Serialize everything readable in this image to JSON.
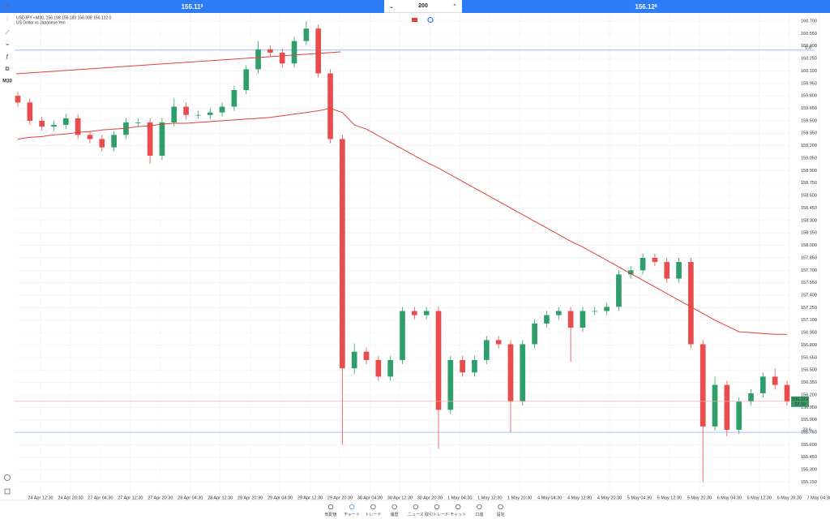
{
  "header": {
    "sell_price": "156.11",
    "sell_pip": "9",
    "lot": "200",
    "buy_price": "156.12",
    "buy_pip": "8"
  },
  "legend": {
    "symbol": "USDJPY • M30, 156.198 156.183 156.088 156.122 0",
    "description": "US Dollar vs Japanese Yen"
  },
  "toolbar": {
    "timeframe": "M30"
  },
  "chart_data": {
    "type": "candlestick",
    "up_color": "#2e9e6b",
    "down_color": "#e84c4c",
    "grid": true,
    "ylim": [
      154.95,
      160.827
    ],
    "yticks": [
      {
        "value": 160.7,
        "label": "160.700"
      },
      {
        "value": 160.55,
        "label": "160.550"
      },
      {
        "value": 160.4,
        "label": "160.400"
      },
      {
        "value": 160.25,
        "label": "160.250"
      },
      {
        "value": 160.1,
        "label": "160.100"
      },
      {
        "value": 159.95,
        "label": "159.950"
      },
      {
        "value": 159.8,
        "label": "159.800"
      },
      {
        "value": 159.65,
        "label": "159.650"
      },
      {
        "value": 159.5,
        "label": "159.500"
      },
      {
        "value": 159.35,
        "label": "159.350"
      },
      {
        "value": 159.2,
        "label": "159.200"
      },
      {
        "value": 159.05,
        "label": "159.050"
      },
      {
        "value": 158.9,
        "label": "158.900"
      },
      {
        "value": 158.75,
        "label": "158.750"
      },
      {
        "value": 158.6,
        "label": "158.600"
      },
      {
        "value": 158.45,
        "label": "158.450"
      },
      {
        "value": 158.3,
        "label": "158.300"
      },
      {
        "value": 158.15,
        "label": "158.150"
      },
      {
        "value": 158,
        "label": "158.000"
      },
      {
        "value": 157.85,
        "label": "157.850"
      },
      {
        "value": 157.7,
        "label": "157.700"
      },
      {
        "value": 157.55,
        "label": "157.550"
      },
      {
        "value": 157.4,
        "label": "157.400"
      },
      {
        "value": 157.25,
        "label": "157.250"
      },
      {
        "value": 157.1,
        "label": "157.100"
      },
      {
        "value": 156.95,
        "label": "156.950"
      },
      {
        "value": 156.8,
        "label": "156.800"
      },
      {
        "value": 156.65,
        "label": "156.650"
      },
      {
        "value": 156.5,
        "label": "156.500"
      },
      {
        "value": 156.35,
        "label": "156.350"
      },
      {
        "value": 156.2,
        "label": "156.200"
      },
      {
        "value": 156.05,
        "label": "156.050"
      },
      {
        "value": 155.9,
        "label": "155.900"
      },
      {
        "value": 155.75,
        "label": "155.750"
      },
      {
        "value": 155.6,
        "label": "155.600"
      },
      {
        "value": 155.45,
        "label": "155.450"
      },
      {
        "value": 155.3,
        "label": "155.300"
      },
      {
        "value": 155.15,
        "label": "155.150"
      }
    ],
    "x_labels": [
      "24 Apr 12:30",
      "24 Apr 20:30",
      "27 Apr 04:30",
      "27 Apr 12:30",
      "27 Apr 20:30",
      "28 Apr 04:30",
      "28 Apr 12:30",
      "28 Apr 20:30",
      "29 Apr 04:30",
      "29 Apr 12:30",
      "29 Apr 20:30",
      "30 Apr 04:30",
      "30 Apr 12:30",
      "30 Apr 20:30",
      "1 May 04:30",
      "1 May 12:30",
      "1 May 20:30",
      "4 May 04:30",
      "4 May 12:30",
      "4 May 20:30",
      "5 May 04:30",
      "5 May 12:30",
      "5 May 20:30",
      "6 May 04:30",
      "6 May 12:30",
      "6 May 20:30",
      "7 May 04:30"
    ],
    "open": [
      159.8,
      159.72,
      159.5,
      159.43,
      159.45,
      159.53,
      159.33,
      159.28,
      159.18,
      159.33,
      159.48,
      159.48,
      159.08,
      159.48,
      159.67,
      159.57,
      159.57,
      159.6,
      159.67,
      159.87,
      160.12,
      160.36,
      160.32,
      160.19,
      160.46,
      160.61,
      160.07,
      159.28,
      156.52,
      156.72,
      156.62,
      156.42,
      156.62,
      157.21,
      157.16,
      157.21,
      156.02,
      156.62,
      156.47,
      156.62,
      156.86,
      156.81,
      156.12,
      156.81,
      157.06,
      157.16,
      157.21,
      157.01,
      157.21,
      157.21,
      157.26,
      157.65,
      157.7,
      157.85,
      157.8,
      157.6,
      157.8,
      156.81,
      155.82,
      156.32,
      155.78,
      156.12,
      156.22,
      156.42,
      156.32
    ],
    "high": [
      159.85,
      159.77,
      159.55,
      159.5,
      159.58,
      159.58,
      159.38,
      159.33,
      159.38,
      159.53,
      159.53,
      159.53,
      159.53,
      159.77,
      159.72,
      159.62,
      159.65,
      159.72,
      159.92,
      160.17,
      160.46,
      160.41,
      160.37,
      160.51,
      160.7,
      160.66,
      160.12,
      159.33,
      156.82,
      156.77,
      156.67,
      156.67,
      157.26,
      157.26,
      157.26,
      157.26,
      156.67,
      156.67,
      156.67,
      156.91,
      156.91,
      156.86,
      156.86,
      157.11,
      157.21,
      157.26,
      157.26,
      157.26,
      157.26,
      157.31,
      157.7,
      157.75,
      157.9,
      157.9,
      157.85,
      157.85,
      157.85,
      156.86,
      156.42,
      156.37,
      156.17,
      156.27,
      156.47,
      156.52,
      156.37
    ],
    "low": [
      159.67,
      159.45,
      159.38,
      159.38,
      159.4,
      159.28,
      159.23,
      159.13,
      159.13,
      159.28,
      159.43,
      158.98,
      159.03,
      159.43,
      159.52,
      159.52,
      159.52,
      159.55,
      159.62,
      159.82,
      160.07,
      160.27,
      160.14,
      160.14,
      160.41,
      160.02,
      159.23,
      155.6,
      156.45,
      156.57,
      156.37,
      156.37,
      156.57,
      157.11,
      157.11,
      155.55,
      155.97,
      156.42,
      156.42,
      156.57,
      156.76,
      155.75,
      156.07,
      156.76,
      157.01,
      157.11,
      156.6,
      156.96,
      157.16,
      157.16,
      157.21,
      157.6,
      157.65,
      157.75,
      157.55,
      157.55,
      156.76,
      155.15,
      155.77,
      155.7,
      155.73,
      156.07,
      156.17,
      156.27,
      156.07
    ],
    "close": [
      159.72,
      159.5,
      159.43,
      159.45,
      159.53,
      159.33,
      159.28,
      159.18,
      159.33,
      159.48,
      159.48,
      159.08,
      159.48,
      159.67,
      159.57,
      159.57,
      159.6,
      159.67,
      159.87,
      160.12,
      160.36,
      160.32,
      160.19,
      160.46,
      160.61,
      160.07,
      159.28,
      156.52,
      156.72,
      156.62,
      156.42,
      156.62,
      157.21,
      157.16,
      157.21,
      156.02,
      156.62,
      156.47,
      156.62,
      156.86,
      156.81,
      156.12,
      156.81,
      157.06,
      157.16,
      157.21,
      157.01,
      157.21,
      157.21,
      157.26,
      157.65,
      157.7,
      157.85,
      157.8,
      157.6,
      157.8,
      156.81,
      155.82,
      156.32,
      155.78,
      156.12,
      156.22,
      156.42,
      156.32,
      156.12
    ],
    "moving_average": {
      "color": "#e0413a",
      "values": [
        159.28,
        159.3,
        159.31,
        159.33,
        159.34,
        159.36,
        159.37,
        159.39,
        159.4,
        159.41,
        159.43,
        159.44,
        159.46,
        159.47,
        159.47,
        159.48,
        159.49,
        159.5,
        159.51,
        159.52,
        159.53,
        159.54,
        159.56,
        159.58,
        159.6,
        159.62,
        159.65,
        159.6,
        159.45,
        159.4,
        159.32,
        159.24,
        159.16,
        159.08,
        159.0,
        158.93,
        158.85,
        158.77,
        158.69,
        158.61,
        158.53,
        158.45,
        158.37,
        158.29,
        158.21,
        158.13,
        158.05,
        157.98,
        157.9,
        157.82,
        157.74,
        157.66,
        157.58,
        157.5,
        157.42,
        157.34,
        157.26,
        157.18,
        157.1,
        157.03,
        156.96,
        156.95,
        156.94,
        156.93,
        156.93
      ]
    },
    "levels": [
      {
        "label": "0.0",
        "value": 160.35
      },
      {
        "label": "23.6",
        "value": 155.75
      }
    ],
    "current_price": {
      "value": 156.123,
      "time": "22:10"
    }
  },
  "nav": [
    {
      "label": "気配値"
    },
    {
      "label": "チャート",
      "active": true
    },
    {
      "label": "トレード"
    },
    {
      "label": "履歴"
    },
    {
      "label": "ニュース"
    },
    {
      "label": "取引トレード"
    },
    {
      "label": "チャット"
    },
    {
      "label": "口座"
    },
    {
      "label": "設定"
    }
  ]
}
